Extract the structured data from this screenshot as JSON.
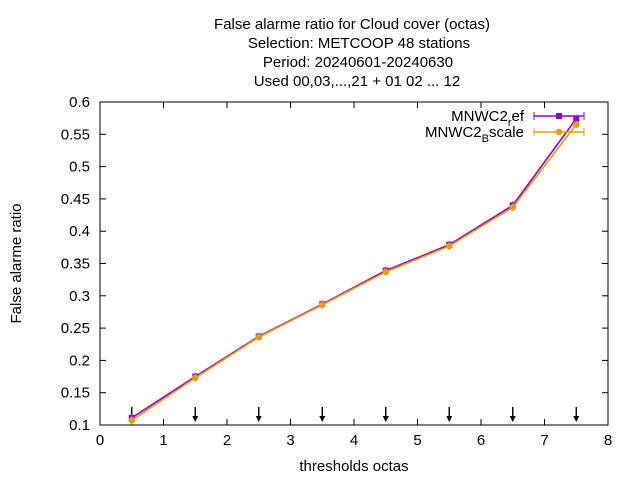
{
  "chart_data": {
    "type": "line",
    "title_lines": [
      "False alarme ratio  for Cloud cover (octas)",
      "Selection: METCOOP     48 stations",
      "Period: 20240601-20240630",
      "Used 00,03,...,21 + 01 02 ... 12"
    ],
    "xlabel": "thresholds octas",
    "ylabel": "False alarme ratio",
    "xlim": [
      0,
      8
    ],
    "ylim": [
      0.1,
      0.6
    ],
    "xticks": [
      "0",
      "1",
      "2",
      "3",
      "4",
      "5",
      "6",
      "7",
      "8"
    ],
    "yticks": [
      "0.1",
      "0.15",
      "0.2",
      "0.25",
      "0.3",
      "0.35",
      "0.4",
      "0.45",
      "0.5",
      "0.55",
      "0.6"
    ],
    "grid": false,
    "legend_position": "top-right",
    "series": [
      {
        "name": "MNWC2_ref",
        "legend_main": "MNWC2",
        "legend_sub": "r",
        "legend_tail": "ef",
        "color": "#9400d3",
        "marker": "square",
        "x": [
          0.5,
          1.5,
          2.5,
          3.5,
          4.5,
          5.5,
          6.5,
          7.5
        ],
        "y": [
          0.111,
          0.175,
          0.237,
          0.287,
          0.339,
          0.379,
          0.44,
          0.574
        ]
      },
      {
        "name": "MNWC2_Bscale",
        "legend_main": "MNWC2",
        "legend_sub": "B",
        "legend_tail": "scale",
        "color": "#e69f00",
        "marker": "circle",
        "x": [
          0.5,
          1.5,
          2.5,
          3.5,
          4.5,
          5.5,
          6.5,
          7.5
        ],
        "y": [
          0.107,
          0.173,
          0.236,
          0.286,
          0.337,
          0.377,
          0.437,
          0.565
        ]
      }
    ],
    "arrows_x": [
      0.5,
      1.5,
      2.5,
      3.5,
      4.5,
      5.5,
      6.5,
      7.5
    ]
  }
}
